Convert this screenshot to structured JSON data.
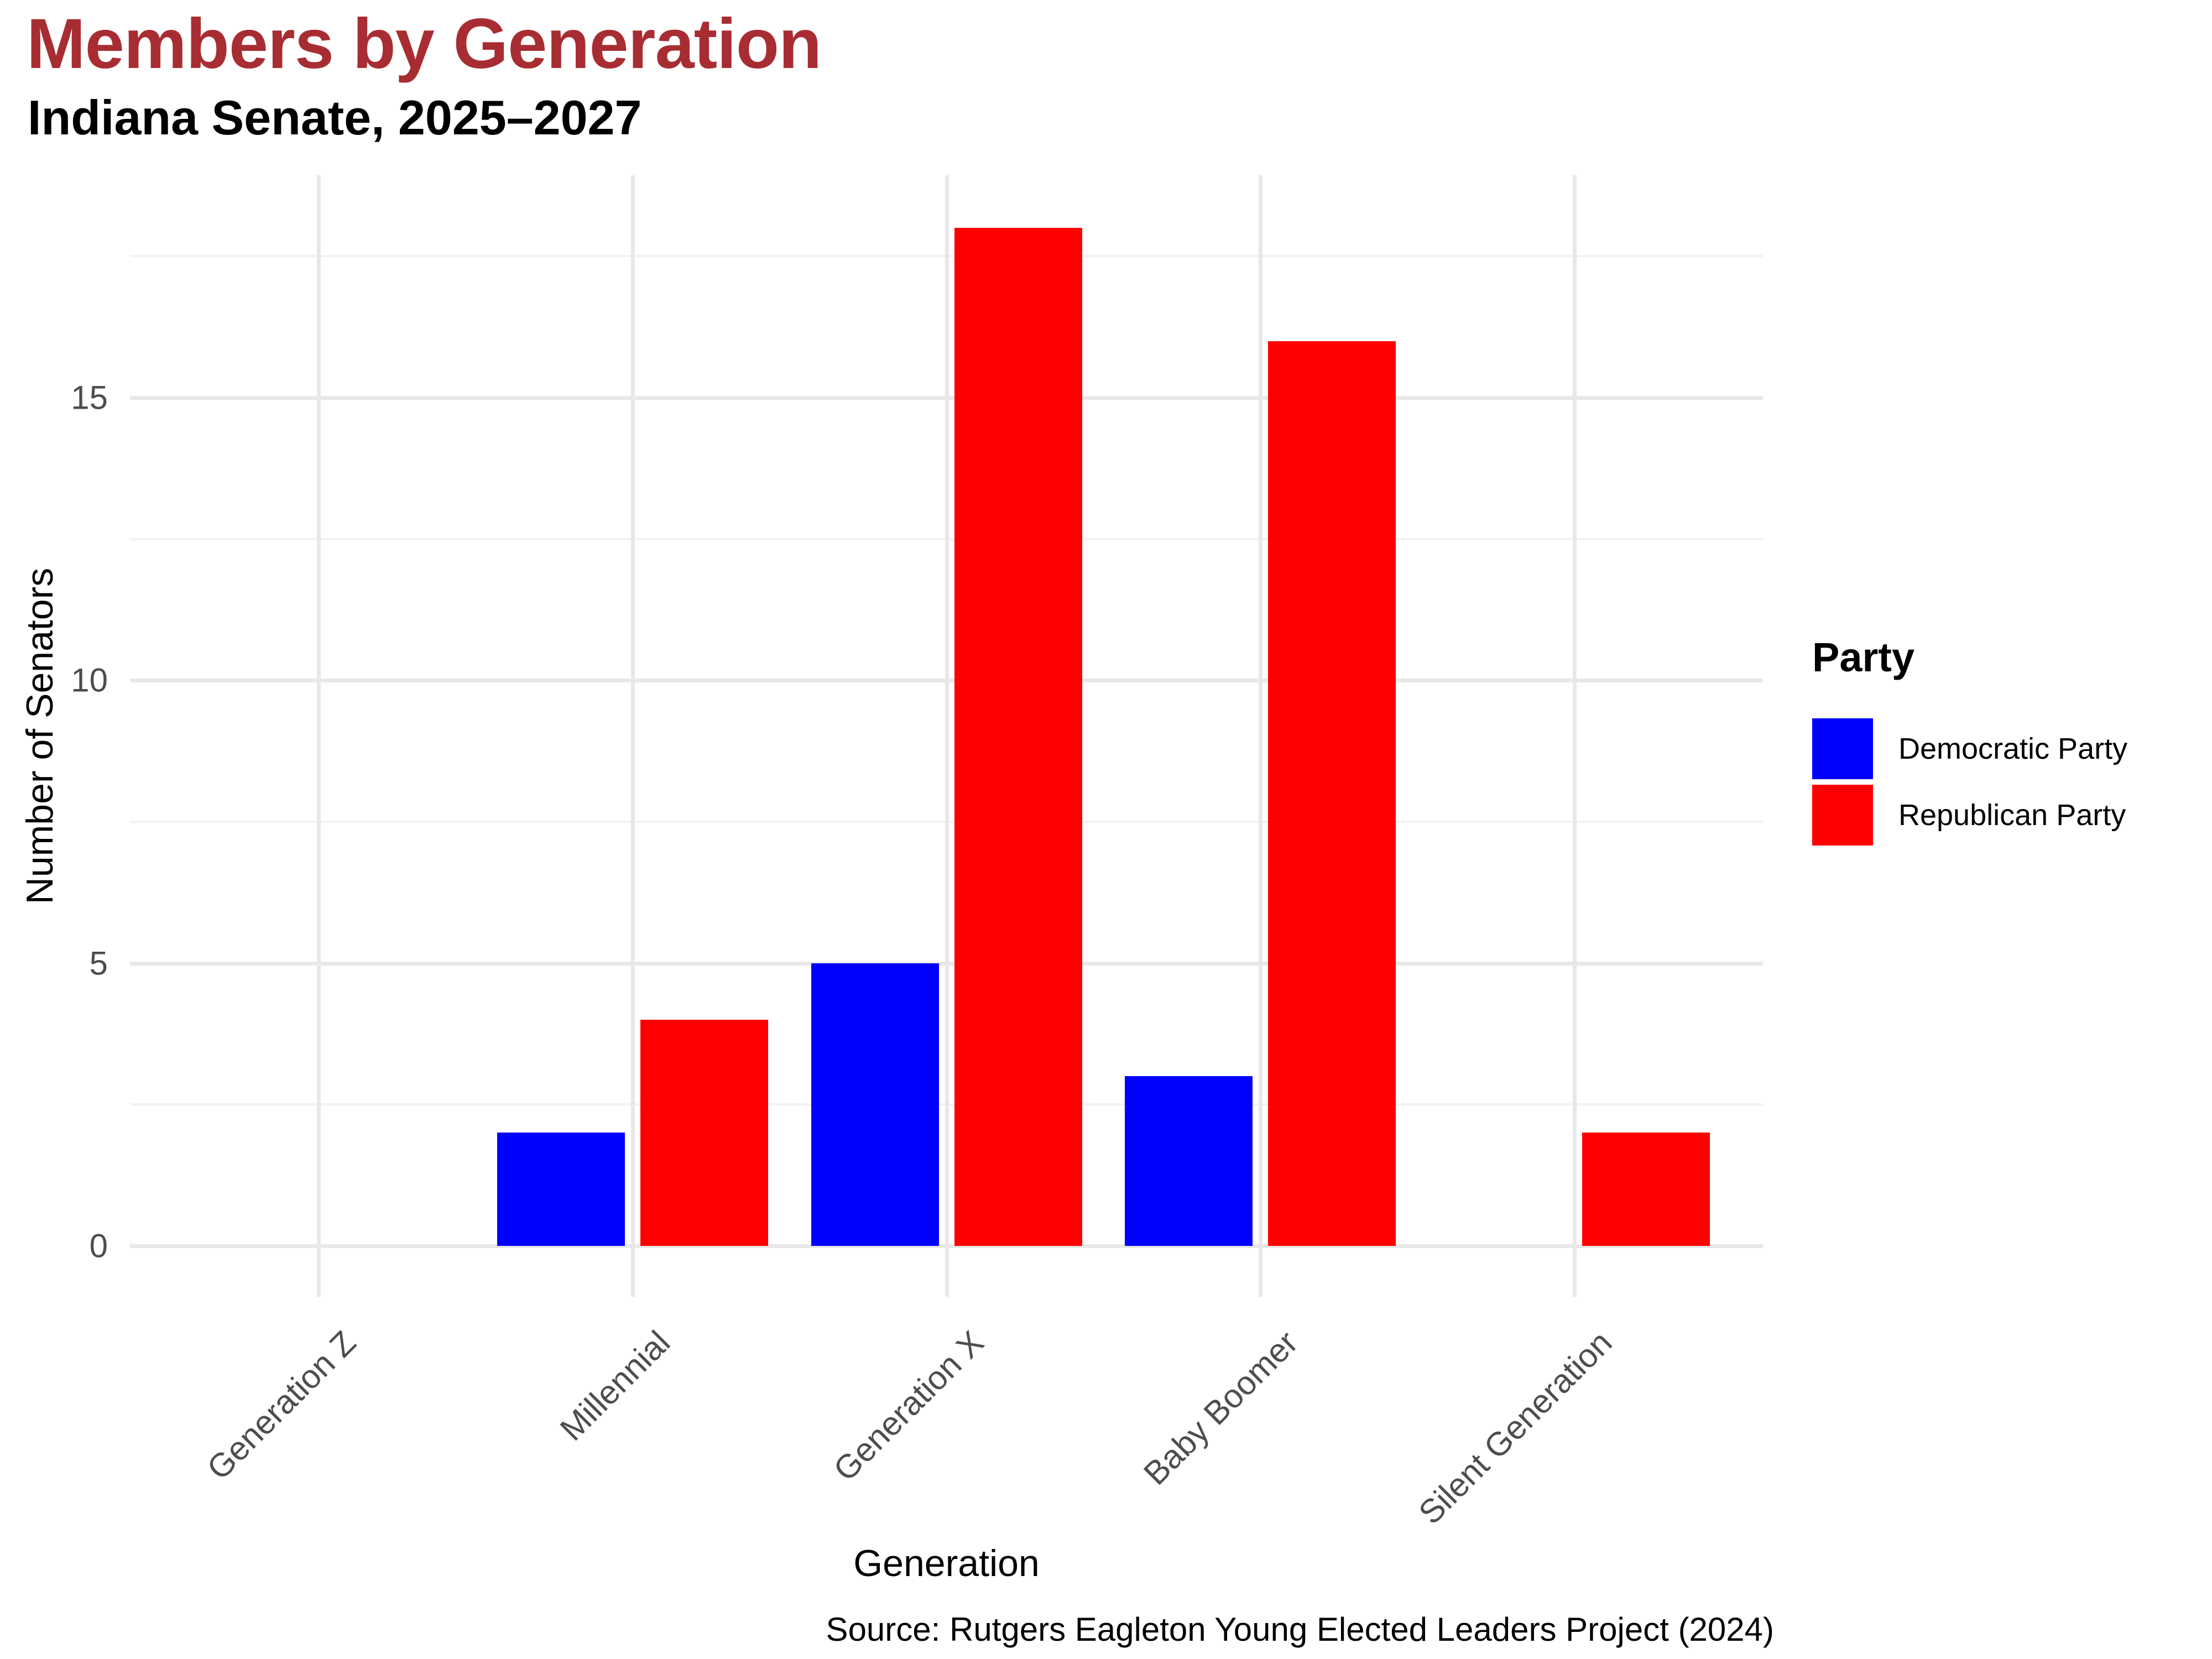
{
  "header": {
    "title": "Members by Generation",
    "subtitle": "Indiana Senate, 2025–2027",
    "title_color": "#a82d32"
  },
  "chart_data": {
    "type": "bar",
    "title": "Members by Generation",
    "subtitle": "Indiana Senate, 2025–2027",
    "xlabel": "Generation",
    "ylabel": "Number of Senators",
    "caption": "Source: Rutgers Eagleton Young Elected Leaders Project (2024)",
    "categories": [
      "Generation Z",
      "Millennial",
      "Generation X",
      "Baby Boomer",
      "Silent Generation"
    ],
    "series": [
      {
        "name": "Democratic Party",
        "color": "#0000ff",
        "values": [
          0,
          2,
          5,
          3,
          0
        ]
      },
      {
        "name": "Republican Party",
        "color": "#ff0000",
        "values": [
          0,
          4,
          18,
          16,
          2
        ]
      }
    ],
    "y_ticks": [
      0,
      5,
      10,
      15
    ],
    "ylim": [
      0,
      18.9
    ],
    "grid": true,
    "legend_title": "Party",
    "legend_position": "right"
  }
}
